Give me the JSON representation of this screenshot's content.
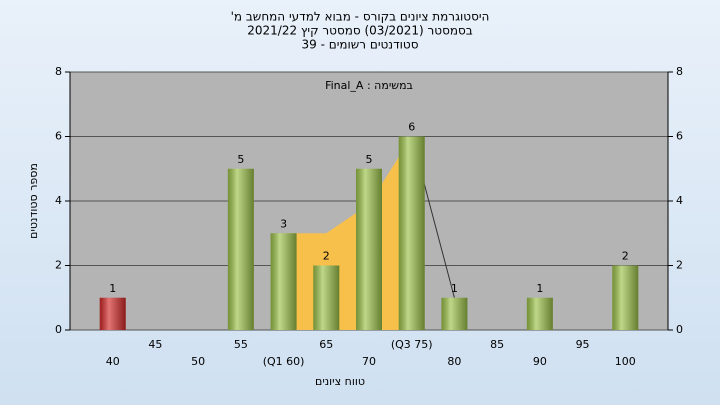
{
  "chart_data": {
    "type": "bar",
    "title": "היסטוגרמת ציונים בקורס - מבוא למדעי המחשב מ'",
    "subtitle": "בסמסטר (03/2021) סמסטר קיץ 2021/22",
    "subtitle2": "סטודנטים רשומים - 39",
    "annotation": "במשימה : Final_A",
    "x_label": "טווח ציונים",
    "y_label": "מספר סטודנטים",
    "categories": [
      "40",
      "45",
      "50",
      "55",
      "(Q1 60)",
      "65",
      "70",
      "(Q3 75)",
      "80",
      "85",
      "90",
      "95",
      "100"
    ],
    "values": [
      1,
      null,
      null,
      5,
      3,
      2,
      5,
      6,
      1,
      null,
      1,
      null,
      2
    ],
    "colors": [
      "#d42a2a",
      "#9cc24a",
      "#9cc24a",
      "#9cc24a",
      "#9cc24a",
      "#9cc24a",
      "#9cc24a",
      "#9cc24a",
      "#9cc24a",
      "#9cc24a",
      "#9cc24a",
      "#9cc24a",
      "#9cc24a"
    ],
    "area": {
      "x": [
        4,
        5,
        6,
        7
      ],
      "values": [
        3,
        3,
        3.9,
        6
      ],
      "color": "#f7c04a"
    },
    "line": {
      "x": [
        7,
        8
      ],
      "values": [
        6,
        1
      ],
      "color": "#333333"
    },
    "ylim": [
      0,
      8
    ],
    "yticks": [
      0,
      2,
      4,
      6,
      8
    ],
    "y2lim": [
      0,
      8
    ],
    "y2ticks": [
      0,
      2,
      4,
      6,
      8
    ],
    "grid": true
  }
}
